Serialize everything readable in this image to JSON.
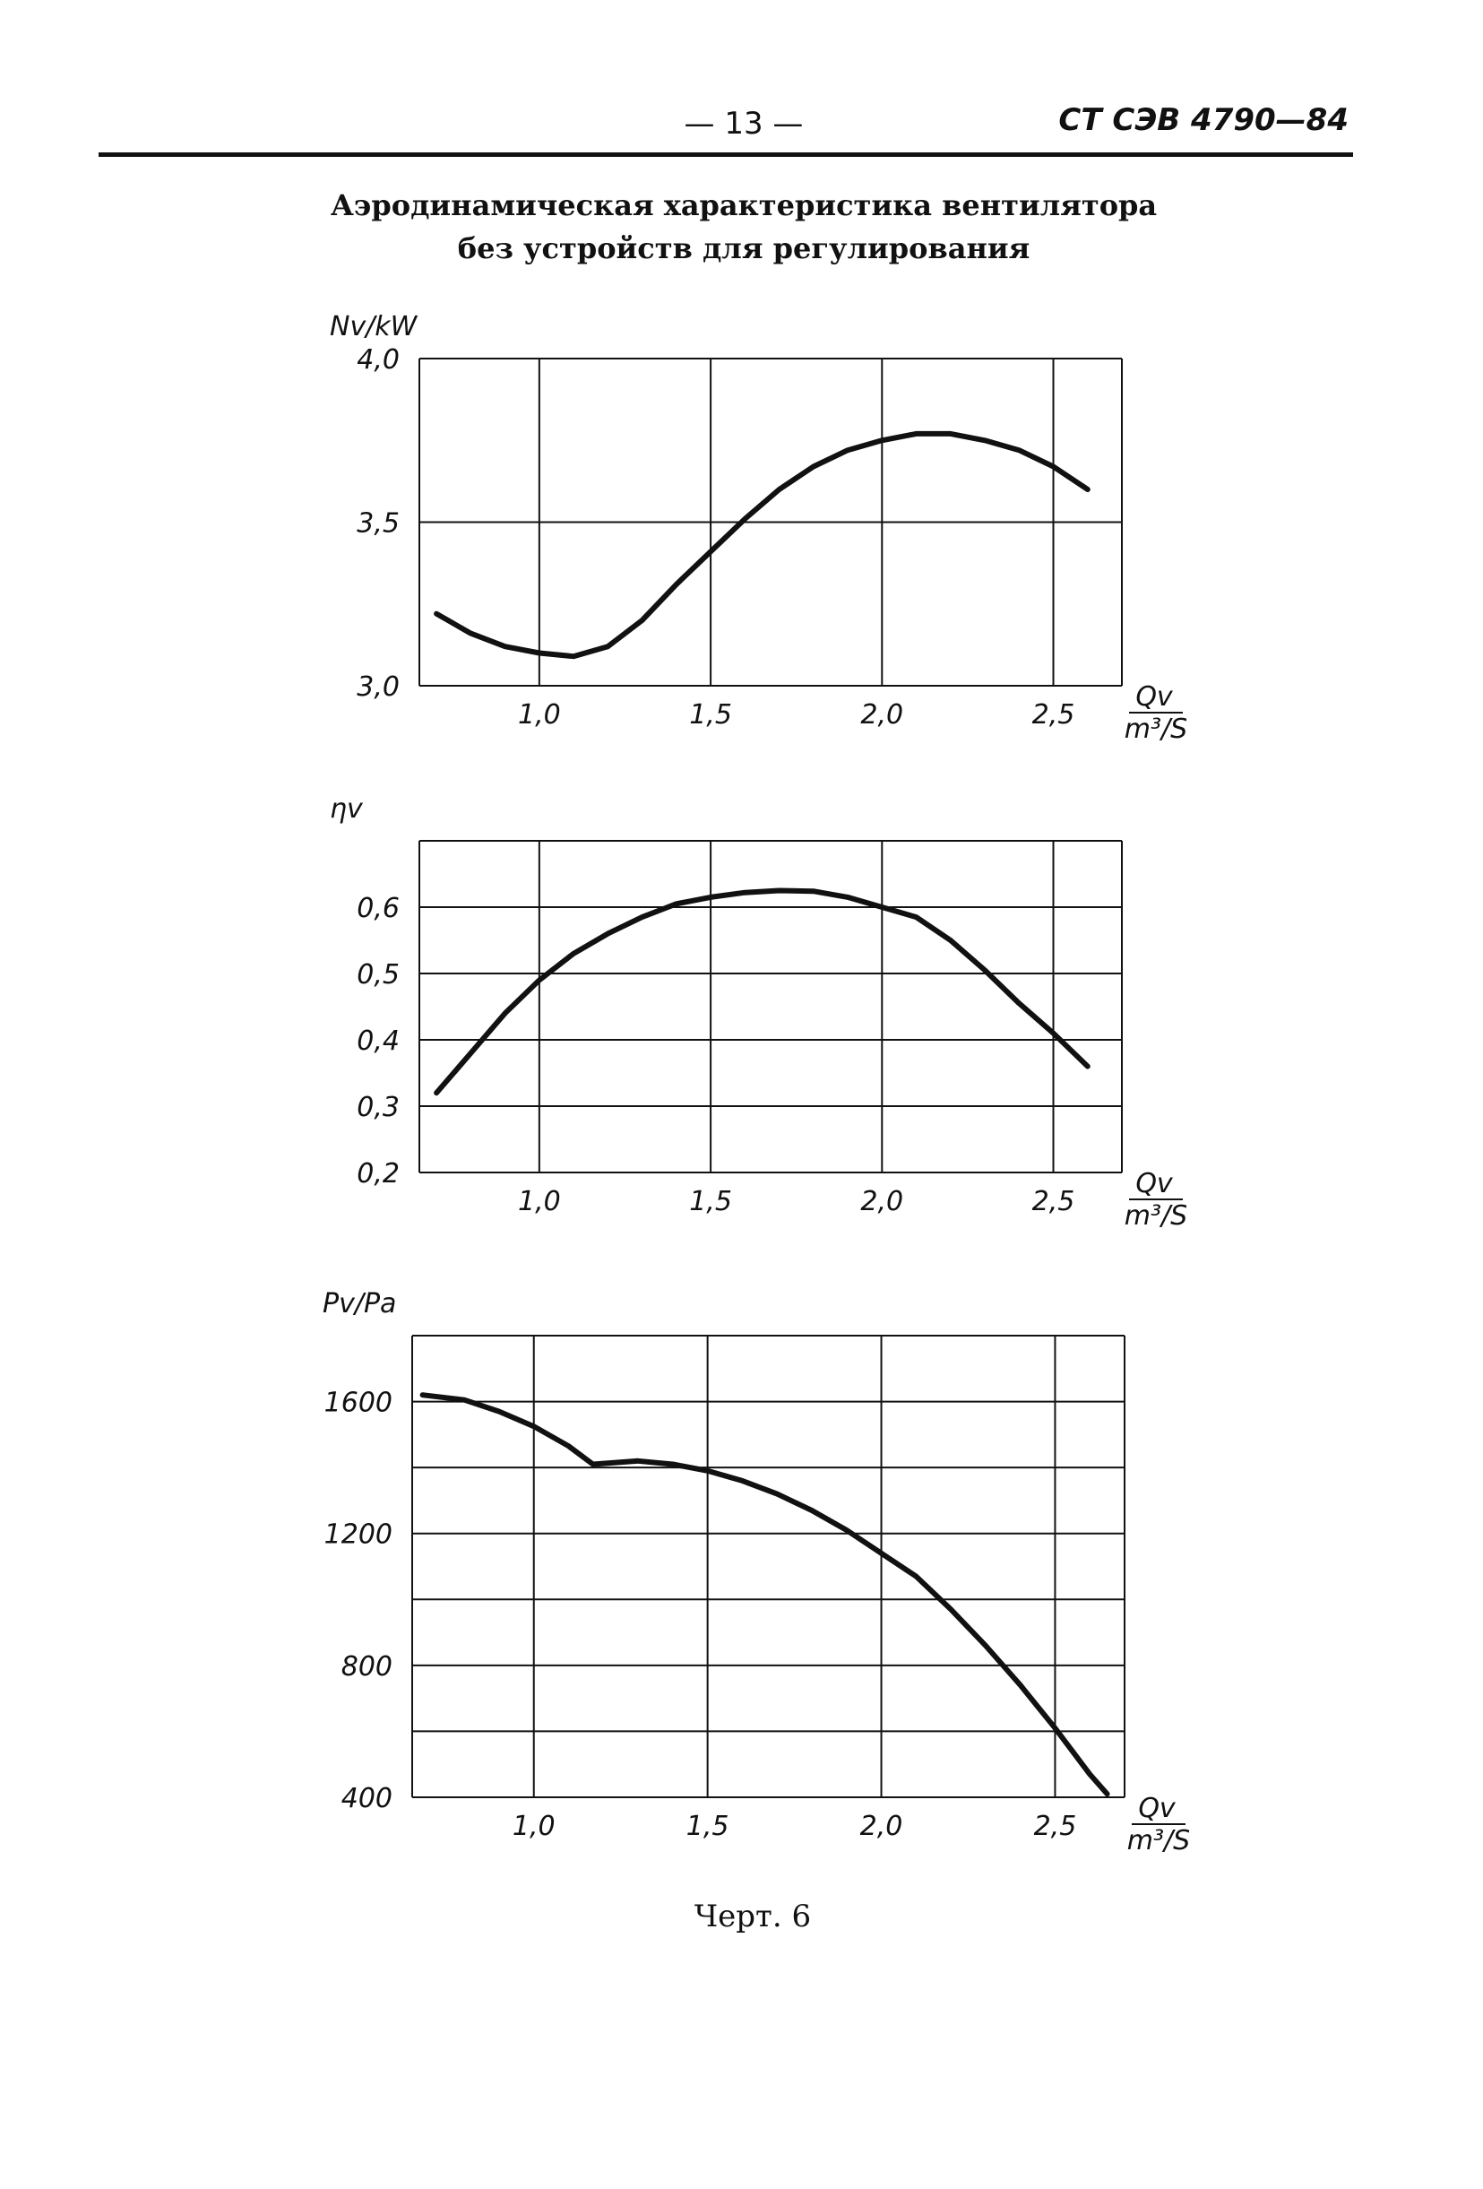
{
  "header": {
    "page_number": "— 13 —",
    "doc_code": "CT СЭВ 4790—84"
  },
  "title_lines": [
    "Аэродинамическая характеристика вентилятора",
    "без устройств для регулирования"
  ],
  "caption": "Черт. 6",
  "chart_data": [
    {
      "type": "line",
      "ylabel": "Nv/kW",
      "xlabel_num": "Qv",
      "xlabel_den": "m³/S",
      "xlim": [
        0.65,
        2.7
      ],
      "ylim": [
        3.0,
        4.0
      ],
      "x_ticks": [
        1.0,
        1.5,
        2.0,
        2.5
      ],
      "x_tick_labels": [
        "1,0",
        "1,5",
        "2,0",
        "2,5"
      ],
      "y_ticks": [
        3.0,
        3.5,
        4.0
      ],
      "y_tick_labels": [
        "3,0",
        "3,5",
        "4,0"
      ],
      "x_grid": [
        1.0,
        1.5,
        2.0,
        2.5,
        2.7
      ],
      "y_grid": [
        3.5,
        4.0
      ],
      "grid": true,
      "series": [
        {
          "x": [
            0.7,
            0.8,
            0.9,
            1.0,
            1.1,
            1.2,
            1.3,
            1.4,
            1.5,
            1.6,
            1.7,
            1.8,
            1.9,
            2.0,
            2.1,
            2.2,
            2.3,
            2.4,
            2.5,
            2.6
          ],
          "values": [
            3.22,
            3.16,
            3.12,
            3.1,
            3.09,
            3.12,
            3.2,
            3.31,
            3.41,
            3.51,
            3.6,
            3.67,
            3.72,
            3.75,
            3.77,
            3.77,
            3.75,
            3.72,
            3.67,
            3.6
          ]
        }
      ]
    },
    {
      "type": "line",
      "ylabel": "ηv",
      "xlabel_num": "Qv",
      "xlabel_den": "m³/S",
      "xlim": [
        0.65,
        2.7
      ],
      "ylim": [
        0.2,
        0.7
      ],
      "x_ticks": [
        1.0,
        1.5,
        2.0,
        2.5
      ],
      "x_tick_labels": [
        "1,0",
        "1,5",
        "2,0",
        "2,5"
      ],
      "y_ticks": [
        0.2,
        0.3,
        0.4,
        0.5,
        0.6
      ],
      "y_tick_labels": [
        "0,2",
        "0,3",
        "0,4",
        "0,5",
        "0,6"
      ],
      "x_grid": [
        1.0,
        1.5,
        2.0,
        2.5,
        2.7
      ],
      "y_grid": [
        0.3,
        0.4,
        0.5,
        0.6,
        0.7
      ],
      "grid": true,
      "series": [
        {
          "x": [
            0.7,
            0.8,
            0.9,
            1.0,
            1.1,
            1.2,
            1.3,
            1.4,
            1.5,
            1.6,
            1.7,
            1.8,
            1.9,
            2.0,
            2.1,
            2.2,
            2.3,
            2.4,
            2.5,
            2.6
          ],
          "values": [
            0.32,
            0.38,
            0.44,
            0.49,
            0.53,
            0.56,
            0.585,
            0.605,
            0.615,
            0.622,
            0.625,
            0.624,
            0.615,
            0.6,
            0.585,
            0.55,
            0.505,
            0.455,
            0.41,
            0.36
          ]
        }
      ]
    },
    {
      "type": "line",
      "ylabel": "Pv/Pa",
      "xlabel_num": "Qv",
      "xlabel_den": "m³/S",
      "xlim": [
        0.65,
        2.7
      ],
      "ylim": [
        400,
        1800
      ],
      "x_ticks": [
        1.0,
        1.5,
        2.0,
        2.5
      ],
      "x_tick_labels": [
        "1,0",
        "1,5",
        "2,0",
        "2,5"
      ],
      "y_ticks": [
        400,
        800,
        1200,
        1600
      ],
      "y_tick_labels": [
        "400",
        "800",
        "1200",
        "1600"
      ],
      "x_grid": [
        1.0,
        1.5,
        2.0,
        2.5,
        2.7
      ],
      "y_grid": [
        600,
        800,
        1000,
        1200,
        1400,
        1600,
        1800
      ],
      "grid": true,
      "series": [
        {
          "x": [
            0.68,
            0.8,
            0.9,
            1.0,
            1.1,
            1.17,
            1.3,
            1.4,
            1.5,
            1.6,
            1.7,
            1.8,
            1.9,
            2.0,
            2.1,
            2.2,
            2.3,
            2.4,
            2.5,
            2.6,
            2.65
          ],
          "values": [
            1620,
            1605,
            1570,
            1525,
            1465,
            1410,
            1420,
            1410,
            1390,
            1360,
            1320,
            1270,
            1210,
            1140,
            1070,
            970,
            860,
            740,
            610,
            470,
            410
          ]
        }
      ]
    }
  ]
}
